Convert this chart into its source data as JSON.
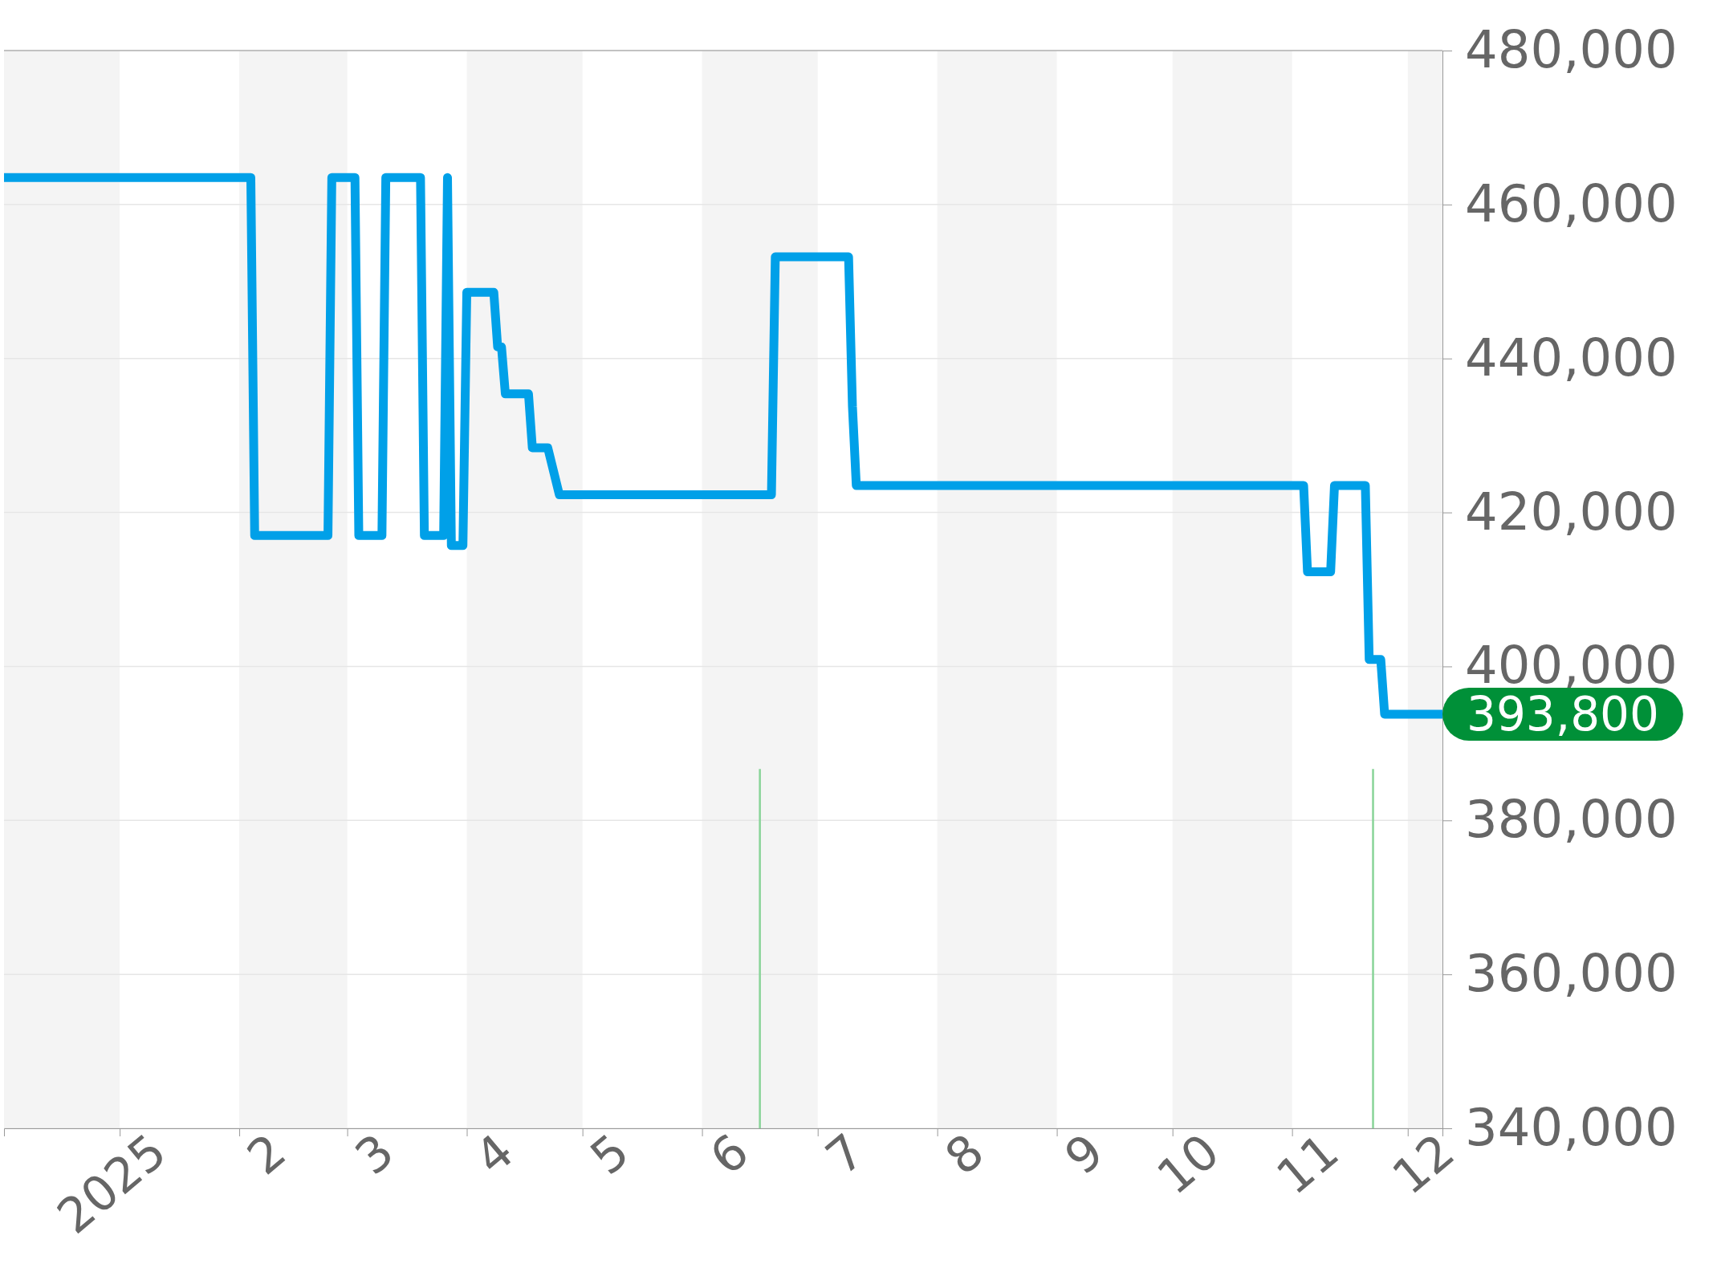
{
  "chart_data": {
    "type": "line",
    "x": [
      "2024-12-02",
      "2025-02-04",
      "2025-02-05",
      "2025-02-24",
      "2025-02-25",
      "2025-03-03",
      "2025-03-04",
      "2025-03-10",
      "2025-03-11",
      "2025-03-20",
      "2025-03-21",
      "2025-03-26",
      "2025-03-27",
      "2025-03-28",
      "2025-03-31",
      "2025-04-01",
      "2025-04-08",
      "2025-04-09",
      "2025-04-10",
      "2025-04-11",
      "2025-04-17",
      "2025-04-18",
      "2025-04-22",
      "2025-04-25",
      "2025-06-19",
      "2025-06-20",
      "2025-07-09",
      "2025-07-10",
      "2025-07-11",
      "2025-11-04",
      "2025-11-05",
      "2025-11-11",
      "2025-11-12",
      "2025-11-20",
      "2025-11-21",
      "2025-11-24",
      "2025-11-25",
      "2025-12-10"
    ],
    "series": [
      {
        "color": "#00a0e8",
        "values": [
          463500,
          463500,
          417000,
          417000,
          463500,
          463500,
          417000,
          417000,
          463500,
          463500,
          417000,
          417000,
          463500,
          415700,
          415700,
          448600,
          448600,
          441500,
          441500,
          435400,
          435400,
          428400,
          428400,
          422300,
          422300,
          453200,
          453200,
          433800,
          423500,
          423500,
          412300,
          412300,
          423500,
          423500,
          400900,
          400900,
          393800,
          393800
        ]
      }
    ],
    "xlim": [
      "2024-12-02",
      "2025-12-10"
    ],
    "xticks": [
      {
        "value": "2025-01-01",
        "label": "2025"
      },
      {
        "value": "2025-02-01",
        "label": "2"
      },
      {
        "value": "2025-03-01",
        "label": "3"
      },
      {
        "value": "2025-04-01",
        "label": "4"
      },
      {
        "value": "2025-05-01",
        "label": "5"
      },
      {
        "value": "2025-06-01",
        "label": "6"
      },
      {
        "value": "2025-07-01",
        "label": "7"
      },
      {
        "value": "2025-08-01",
        "label": "8"
      },
      {
        "value": "2025-09-01",
        "label": "9"
      },
      {
        "value": "2025-10-01",
        "label": "10"
      },
      {
        "value": "2025-11-01",
        "label": "11"
      },
      {
        "value": "2025-12-01",
        "label": "12"
      }
    ],
    "ylim": [
      340000,
      480000
    ],
    "yticks": [
      {
        "value": 340000,
        "label": "340,000"
      },
      {
        "value": 360000,
        "label": "360,000"
      },
      {
        "value": 380000,
        "label": "380,000"
      },
      {
        "value": 400000,
        "label": "400,000"
      },
      {
        "value": 420000,
        "label": "420,000"
      },
      {
        "value": 440000,
        "label": "440,000"
      },
      {
        "value": 460000,
        "label": "460,000"
      },
      {
        "value": 480000,
        "label": "480,000"
      }
    ],
    "grid": "y",
    "marker": "none",
    "line_style": "solid",
    "bands": [
      {
        "axis": "x",
        "from": "2024-12-02",
        "to": "2025-01-01",
        "color": "#f4f4f4"
      },
      {
        "axis": "x",
        "from": "2025-02-01",
        "to": "2025-03-01",
        "color": "#f4f4f4"
      },
      {
        "axis": "x",
        "from": "2025-04-01",
        "to": "2025-05-01",
        "color": "#f4f4f4"
      },
      {
        "axis": "x",
        "from": "2025-06-01",
        "to": "2025-07-01",
        "color": "#f4f4f4"
      },
      {
        "axis": "x",
        "from": "2025-08-01",
        "to": "2025-09-01",
        "color": "#f4f4f4"
      },
      {
        "axis": "x",
        "from": "2025-10-01",
        "to": "2025-11-01",
        "color": "#f4f4f4"
      },
      {
        "axis": "x",
        "from": "2025-12-01",
        "to": "2025-12-10",
        "color": "#f4f4f4"
      }
    ],
    "ref_lines": [
      {
        "axis": "x",
        "value": "2025-06-16",
        "color": "#88d498"
      },
      {
        "axis": "x",
        "value": "2025-11-22",
        "color": "#88d498"
      }
    ],
    "annotations": [
      {
        "text": "393,800",
        "x": "2025-12-10",
        "y": 393800
      }
    ]
  }
}
